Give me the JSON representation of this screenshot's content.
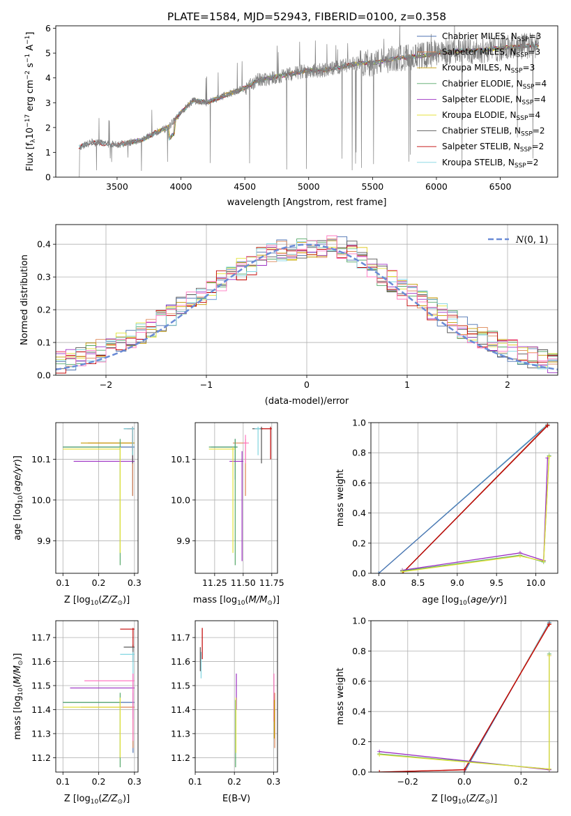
{
  "figure": {
    "title": "PLATE=1584, MJD=52943, FIBERID=0100, z=0.358"
  },
  "chart_data": [
    {
      "id": "spectrum",
      "type": "line",
      "xlabel": "wavelength [Angstrom, rest frame]",
      "ylabel": "Flux [f_λ 10^-17 erg cm^-2 s^-1 A^-1]",
      "xlim": [
        3020,
        6950
      ],
      "ylim": [
        0,
        6.1
      ],
      "xticks": [
        3500,
        4000,
        4500,
        5000,
        5500,
        6000,
        6500
      ],
      "yticks": [
        0,
        1,
        2,
        3,
        4,
        5,
        6
      ],
      "data_color": "#808080",
      "data_trend": {
        "x": [
          3200,
          3300,
          3400,
          3500,
          3600,
          3700,
          3800,
          3900,
          4000,
          4100,
          4200,
          4300,
          4400,
          4500,
          4600,
          4700,
          4800,
          4900,
          5000,
          5100,
          5200,
          5300,
          5400,
          5500,
          5600,
          5700,
          5800,
          5900,
          6000,
          6100,
          6200,
          6300,
          6400,
          6500,
          6600,
          6700,
          6800
        ],
        "y": [
          1.2,
          1.4,
          1.35,
          1.3,
          1.4,
          1.5,
          1.8,
          2.0,
          2.6,
          3.1,
          3.0,
          3.2,
          3.4,
          3.6,
          3.9,
          4.0,
          4.1,
          4.2,
          4.3,
          4.3,
          4.4,
          4.5,
          4.6,
          4.6,
          4.7,
          4.8,
          4.85,
          4.9,
          5.0,
          5.05,
          5.1,
          5.1,
          5.15,
          5.2,
          5.25,
          5.3,
          5.3
        ]
      },
      "gaps": [
        [
          3220,
          3230
        ],
        [
          3900,
          3920
        ],
        [
          4330,
          4340
        ]
      ],
      "legend": [
        {
          "label": "Chabrier MILES, N",
          "sub": "SSP",
          "suffix": "=3",
          "color": "#4c72b0"
        },
        {
          "label": "Salpeter MILES, N",
          "sub": "SSP",
          "suffix": "=3",
          "color": "#dd8452"
        },
        {
          "label": "Kroupa MILES, N",
          "sub": "SSP",
          "suffix": "=3",
          "color": "#c49a00"
        },
        {
          "label": "Chabrier ELODIE, N",
          "sub": "SSP",
          "suffix": "=4",
          "color": "#55a868"
        },
        {
          "label": "Salpeter ELODIE, N",
          "sub": "SSP",
          "suffix": "=4",
          "color": "#9b2ec2"
        },
        {
          "label": "Kroupa ELODIE, N",
          "sub": "SSP",
          "suffix": "=4",
          "color": "#e4e23b"
        },
        {
          "label": "Chabrier STELIB, N",
          "sub": "SSP",
          "suffix": "=2",
          "color": "#555555"
        },
        {
          "label": "Salpeter STELIB, N",
          "sub": "SSP",
          "suffix": "=2",
          "color": "#c00000"
        },
        {
          "label": "Kroupa STELIB, N",
          "sub": "SSP",
          "suffix": "=2",
          "color": "#7fd4e0"
        }
      ]
    },
    {
      "id": "residuals",
      "type": "line",
      "xlabel": "(data-model)/error",
      "ylabel": "Normed distribution",
      "xlim": [
        -2.5,
        2.5
      ],
      "ylim": [
        0,
        0.46
      ],
      "xticks": [
        -2,
        -1,
        0,
        1,
        2
      ],
      "yticks": [
        0.0,
        0.1,
        0.2,
        0.3,
        0.4
      ],
      "grid": true,
      "gaussian_label": "N(0, 1)",
      "gaussian_color": "#6a8bd6",
      "legend_position": "top-right",
      "bin_width": 0.1,
      "hist_colors": [
        "#4c72b0",
        "#dd8452",
        "#c49a00",
        "#55a868",
        "#9b2ec2",
        "#e4e23b",
        "#555555",
        "#c00000",
        "#7fd4e0",
        "#ff77c0"
      ]
    },
    {
      "id": "age-vs-Z",
      "type": "scatter",
      "xlabel": "Z [log10(Z/Z⊙)]",
      "ylabel": "age  [log10(age/yr)]",
      "xlim": [
        0.08,
        0.31
      ],
      "ylim": [
        9.82,
        10.19
      ],
      "xticks": [
        0.1,
        0.2,
        0.3
      ],
      "yticks": [
        9.9,
        10.0,
        10.1
      ],
      "grid": true
    },
    {
      "id": "age-vs-mass",
      "type": "scatter",
      "xlabel": "mass [log10(M/M⊙)]",
      "xlim": [
        11.08,
        11.8
      ],
      "ylim": [
        9.82,
        10.19
      ],
      "xticks": [
        11.25,
        11.5,
        11.75
      ],
      "yticks": [
        9.9,
        10.0,
        10.1
      ],
      "grid": true
    },
    {
      "id": "weight-vs-age",
      "type": "line",
      "xlabel": "age  [log10(age/yr)]",
      "ylabel": "mass weight",
      "xlim": [
        7.9,
        10.28
      ],
      "ylim": [
        0,
        1.0
      ],
      "xticks": [
        8.0,
        8.5,
        9.0,
        9.5,
        10.0
      ],
      "yticks": [
        0.0,
        0.2,
        0.4,
        0.6,
        0.8,
        1.0
      ],
      "grid": true,
      "series": [
        {
          "color": "#7fd4e0",
          "x": [
            8.0,
            10.15
          ],
          "y": [
            0.0,
            0.99
          ]
        },
        {
          "color": "#4c72b0",
          "x": [
            8.0,
            10.15
          ],
          "y": [
            0.0,
            0.985
          ]
        },
        {
          "color": "#dd8452",
          "x": [
            8.3,
            10.15
          ],
          "y": [
            0.0,
            0.985
          ]
        },
        {
          "color": "#555555",
          "x": [
            8.3,
            10.15
          ],
          "y": [
            0.0,
            0.98
          ]
        },
        {
          "color": "#c00000",
          "x": [
            8.3,
            10.15
          ],
          "y": [
            0.0,
            0.98
          ]
        },
        {
          "color": "#9b2ec2",
          "x": [
            8.3,
            9.8,
            10.1,
            10.15
          ],
          "y": [
            0.02,
            0.135,
            0.085,
            0.765
          ]
        },
        {
          "color": "#55a868",
          "x": [
            8.3,
            9.8,
            10.1,
            10.17
          ],
          "y": [
            0.015,
            0.12,
            0.075,
            0.78
          ]
        },
        {
          "color": "#e4e23b",
          "x": [
            8.3,
            9.8,
            10.1,
            10.17
          ],
          "y": [
            0.01,
            0.115,
            0.08,
            0.775
          ]
        }
      ]
    },
    {
      "id": "mass-vs-Z",
      "type": "scatter",
      "xlabel": "Z [log10(Z/Z⊙)]",
      "ylabel": "mass [log10(M/M⊙)]",
      "xlim": [
        0.08,
        0.31
      ],
      "ylim": [
        11.14,
        11.77
      ],
      "xticks": [
        0.1,
        0.2,
        0.3
      ],
      "yticks": [
        11.2,
        11.3,
        11.4,
        11.5,
        11.6,
        11.7
      ],
      "grid": true
    },
    {
      "id": "mass-vs-ebv",
      "type": "scatter",
      "xlabel": "E(B-V)",
      "xlim": [
        0.1,
        0.31
      ],
      "ylim": [
        11.14,
        11.77
      ],
      "xticks": [
        0.1,
        0.2,
        0.3
      ],
      "yticks": [
        11.2,
        11.3,
        11.4,
        11.5,
        11.6,
        11.7
      ],
      "grid": true
    },
    {
      "id": "weight-vs-Z",
      "type": "line",
      "xlabel": "Z [log10(Z/Z⊙)]",
      "ylabel": "mass weight",
      "xlim": [
        -0.33,
        0.33
      ],
      "ylim": [
        0,
        1.0
      ],
      "xticks": [
        -0.2,
        0.0,
        0.2
      ],
      "yticks": [
        0.0,
        0.2,
        0.4,
        0.6,
        0.8,
        1.0
      ],
      "grid": true,
      "series": [
        {
          "color": "#7fd4e0",
          "x": [
            0.0,
            0.3
          ],
          "y": [
            0.0,
            0.99
          ]
        },
        {
          "color": "#4c72b0",
          "x": [
            0.0,
            0.3
          ],
          "y": [
            0.0,
            0.985
          ]
        },
        {
          "color": "#dd8452",
          "x": [
            -0.3,
            0.0,
            0.3
          ],
          "y": [
            0.0,
            0.015,
            0.98
          ]
        },
        {
          "color": "#c00000",
          "x": [
            -0.3,
            0.0,
            0.3
          ],
          "y": [
            0.0,
            0.015,
            0.975
          ]
        },
        {
          "color": "#9b2ec2",
          "x": [
            -0.3,
            0.3,
            0.3
          ],
          "y": [
            0.135,
            0.015,
            0.77
          ]
        },
        {
          "color": "#55a868",
          "x": [
            -0.3,
            0.3,
            0.3
          ],
          "y": [
            0.12,
            0.02,
            0.78
          ]
        },
        {
          "color": "#e4e23b",
          "x": [
            -0.3,
            0.3,
            0.3
          ],
          "y": [
            0.115,
            0.02,
            0.77
          ]
        }
      ]
    }
  ],
  "params": {
    "colors": [
      "#4c72b0",
      "#dd8452",
      "#c49a00",
      "#55a868",
      "#9b2ec2",
      "#e4e23b",
      "#555555",
      "#c00000",
      "#7fd4e0",
      "#ff77c0"
    ],
    "age_Z_points": [
      {
        "color": "#4c72b0",
        "Z": 0.3,
        "Zlo": 0.1,
        "age": 10.13,
        "agelo": 10.01,
        "agehi": 10.15
      },
      {
        "color": "#dd8452",
        "Z": 0.3,
        "Zlo": 0.17,
        "age": 10.14,
        "agelo": 10.01,
        "agehi": 10.155
      },
      {
        "color": "#c49a00",
        "Z": 0.3,
        "Zlo": 0.15,
        "age": 10.14,
        "agelo": 10.1,
        "agehi": 10.16
      },
      {
        "color": "#55a868",
        "Z": 0.26,
        "Zlo": 0.1,
        "age": 10.13,
        "agelo": 9.84,
        "agehi": 10.15
      },
      {
        "color": "#9b2ec2",
        "Z": 0.3,
        "Zlo": 0.13,
        "age": 10.095,
        "agelo": 10.09,
        "agehi": 10.11
      },
      {
        "color": "#e4e23b",
        "Z": 0.26,
        "Zlo": 0.1,
        "age": 10.125,
        "agelo": 9.87,
        "agehi": 10.13
      },
      {
        "color": "#555555",
        "Z": 0.3,
        "Zlo": 0.27,
        "age": 10.175,
        "agelo": 10.09,
        "agehi": 10.18
      },
      {
        "color": "#c00000",
        "Z": 0.3,
        "Zlo": 0.28,
        "age": 10.175,
        "agelo": 10.12,
        "agehi": 10.18
      },
      {
        "color": "#7fd4e0",
        "Z": 0.3,
        "Zlo": 0.27,
        "age": 10.175,
        "agelo": 10.11,
        "agehi": 10.18
      }
    ],
    "age_mass_points": [
      {
        "color": "#4c72b0",
        "m": 11.43,
        "mlo": 11.22,
        "mhi": 11.45,
        "age": 10.13,
        "agelo": 10.05,
        "agehi": 10.15
      },
      {
        "color": "#dd8452",
        "m": 11.52,
        "mlo": 11.41,
        "mhi": 11.53,
        "age": 10.14,
        "agelo": 10.01,
        "agehi": 10.15
      },
      {
        "color": "#55a868",
        "m": 11.43,
        "mlo": 11.2,
        "mhi": 11.45,
        "age": 10.13,
        "agelo": 9.84,
        "agehi": 10.15
      },
      {
        "color": "#9b2ec2",
        "m": 11.49,
        "mlo": 11.38,
        "mhi": 11.5,
        "age": 10.095,
        "agelo": 9.85,
        "agehi": 10.12
      },
      {
        "color": "#e4e23b",
        "m": 11.41,
        "mlo": 11.2,
        "mhi": 11.43,
        "age": 10.125,
        "agelo": 9.87,
        "agehi": 10.13
      },
      {
        "color": "#ff77c0",
        "m": 11.52,
        "mlo": 11.5,
        "mhi": 11.55,
        "age": 10.14,
        "agelo": 10.09,
        "agehi": 10.16
      },
      {
        "color": "#555555",
        "m": 11.66,
        "mlo": 11.58,
        "mhi": 11.67,
        "age": 10.175,
        "agelo": 10.09,
        "agehi": 10.18
      },
      {
        "color": "#c00000",
        "m": 11.74,
        "mlo": 11.66,
        "mhi": 11.75,
        "age": 10.175,
        "agelo": 10.1,
        "agehi": 10.18
      },
      {
        "color": "#7fd4e0",
        "m": 11.63,
        "mlo": 11.6,
        "mhi": 11.65,
        "age": 10.175,
        "agelo": 10.11,
        "agehi": 10.18
      }
    ],
    "mass_Z_points": [
      {
        "color": "#4c72b0",
        "Z": 0.3,
        "Zlo": 0.1,
        "m": 11.43,
        "mlo": 11.22,
        "mhi": 11.47
      },
      {
        "color": "#dd8452",
        "Z": 0.3,
        "Zlo": 0.15,
        "m": 11.41,
        "mlo": 11.24,
        "mhi": 11.43
      },
      {
        "color": "#55a868",
        "Z": 0.26,
        "Zlo": 0.1,
        "m": 11.43,
        "mlo": 11.16,
        "mhi": 11.47
      },
      {
        "color": "#9b2ec2",
        "Z": 0.3,
        "Zlo": 0.12,
        "m": 11.49,
        "mlo": 11.36,
        "mhi": 11.55
      },
      {
        "color": "#e4e23b",
        "Z": 0.26,
        "Zlo": 0.1,
        "m": 11.41,
        "mlo": 11.2,
        "mhi": 11.45
      },
      {
        "color": "#ff77c0",
        "Z": 0.3,
        "Zlo": 0.16,
        "m": 11.52,
        "mlo": 11.27,
        "mhi": 11.55
      },
      {
        "color": "#555555",
        "Z": 0.3,
        "Zlo": 0.27,
        "m": 11.66,
        "mlo": 11.6,
        "mhi": 11.67
      },
      {
        "color": "#c00000",
        "Z": 0.3,
        "Zlo": 0.26,
        "m": 11.735,
        "mlo": 11.66,
        "mhi": 11.74
      },
      {
        "color": "#7fd4e0",
        "Z": 0.3,
        "Zlo": 0.26,
        "m": 11.63,
        "mlo": 11.55,
        "mhi": 11.64
      }
    ],
    "mass_ebv_points": [
      {
        "color": "#7fd4e0",
        "e": 0.115,
        "mlo": 11.53,
        "mhi": 11.64
      },
      {
        "color": "#555555",
        "e": 0.113,
        "mlo": 11.56,
        "mhi": 11.66
      },
      {
        "color": "#c00000",
        "e": 0.118,
        "mlo": 11.61,
        "mhi": 11.74
      },
      {
        "color": "#9b2ec2",
        "e": 0.205,
        "mlo": 11.4,
        "mhi": 11.55
      },
      {
        "color": "#55a868",
        "e": 0.203,
        "mlo": 11.16,
        "mhi": 11.44
      },
      {
        "color": "#e4e23b",
        "e": 0.204,
        "mlo": 11.22,
        "mhi": 11.45
      },
      {
        "color": "#ff77c0",
        "e": 0.301,
        "mlo": 11.35,
        "mhi": 11.55
      },
      {
        "color": "#dd8452",
        "e": 0.303,
        "mlo": 11.24,
        "mhi": 11.47
      },
      {
        "color": "#c49a00",
        "e": 0.302,
        "mlo": 11.28,
        "mhi": 11.44
      }
    ]
  }
}
